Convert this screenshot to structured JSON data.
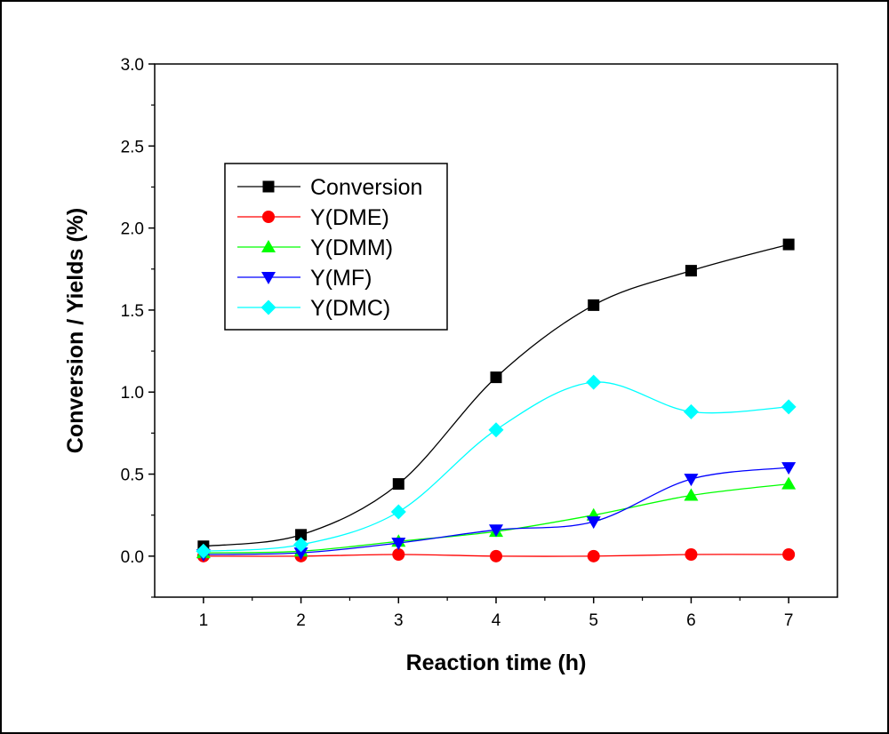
{
  "chart_data": {
    "type": "line",
    "title": "",
    "xlabel": "Reaction time (h)",
    "ylabel": "Conversion / Yields (%)",
    "xlim": [
      0.5,
      7.5
    ],
    "ylim": [
      -0.25,
      3.0
    ],
    "xticks": [
      1,
      2,
      3,
      4,
      5,
      6,
      7
    ],
    "yticks": [
      0.0,
      0.5,
      1.0,
      1.5,
      2.0,
      2.5,
      3.0
    ],
    "ytick_labels": [
      "0.0",
      "0.5",
      "1.0",
      "1.5",
      "2.0",
      "2.5",
      "3.0"
    ],
    "x": [
      1,
      2,
      3,
      4,
      5,
      6,
      7
    ],
    "legend_position": "upper-left",
    "series": [
      {
        "name": "Conversion",
        "marker": "square",
        "color": "#000000",
        "values": [
          0.06,
          0.13,
          0.44,
          1.09,
          1.53,
          1.74,
          1.9
        ]
      },
      {
        "name": "Y(DME)",
        "marker": "circle",
        "color": "#ff0000",
        "values": [
          0.0,
          0.0,
          0.01,
          0.0,
          0.0,
          0.01,
          0.01
        ]
      },
      {
        "name": "Y(DMM)",
        "marker": "triangle-up",
        "color": "#00ff00",
        "values": [
          0.02,
          0.03,
          0.09,
          0.15,
          0.25,
          0.37,
          0.44
        ]
      },
      {
        "name": "Y(MF)",
        "marker": "triangle-down",
        "color": "#0000ff",
        "values": [
          0.01,
          0.02,
          0.08,
          0.16,
          0.21,
          0.47,
          0.54
        ]
      },
      {
        "name": "Y(DMC)",
        "marker": "diamond",
        "color": "#00ffff",
        "values": [
          0.03,
          0.07,
          0.27,
          0.77,
          1.06,
          0.88,
          0.91
        ]
      }
    ]
  }
}
